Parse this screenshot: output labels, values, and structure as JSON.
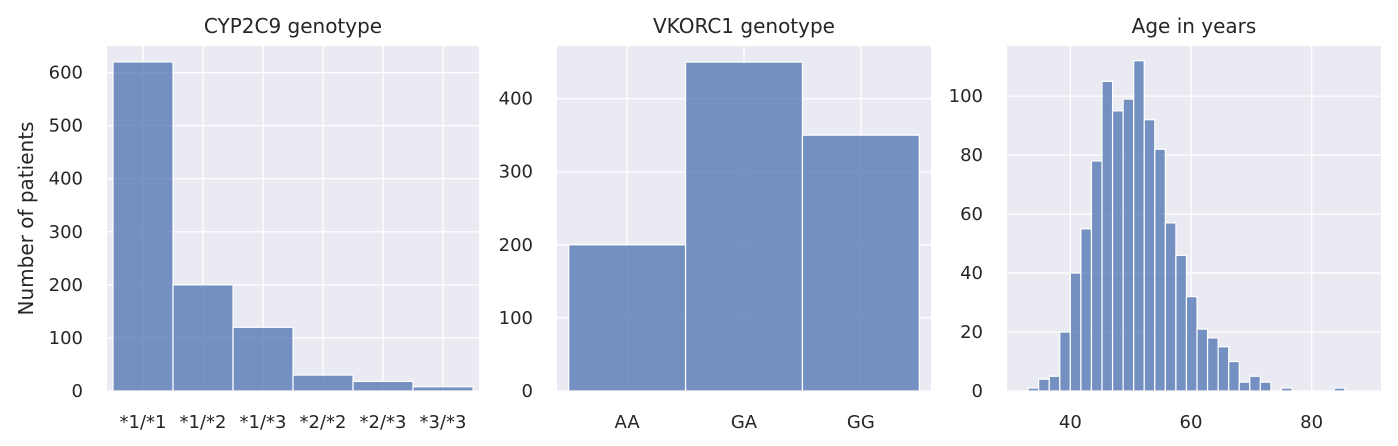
{
  "chart_data": [
    {
      "type": "bar",
      "title": "CYP2C9 genotype",
      "xlabel": "",
      "ylabel": "Number of patients",
      "categories": [
        "*1/*1",
        "*1/*2",
        "*1/*3",
        "*2/*2",
        "*2/*3",
        "*3/*3"
      ],
      "values": [
        620,
        200,
        120,
        30,
        18,
        8
      ],
      "ylim": [
        0,
        650
      ],
      "yticks": [
        0,
        100,
        200,
        300,
        400,
        500,
        600
      ],
      "grid": true,
      "colors": {
        "bar": "#4C72B0",
        "background": "#EAEAF2"
      }
    },
    {
      "type": "bar",
      "title": "VKORC1 genotype",
      "xlabel": "",
      "ylabel": "",
      "categories": [
        "AA",
        "GA",
        "GG"
      ],
      "values": [
        200,
        450,
        350
      ],
      "ylim": [
        0,
        472
      ],
      "yticks": [
        0,
        100,
        200,
        300,
        400
      ],
      "grid": true,
      "colors": {
        "bar": "#4C72B0",
        "background": "#EAEAF2"
      }
    },
    {
      "type": "bar",
      "subtype": "histogram",
      "title": "Age in years",
      "xlabel": "",
      "ylabel": "",
      "bin_start": 33,
      "bin_width": 1.75,
      "values": [
        1,
        4,
        5,
        20,
        40,
        55,
        78,
        105,
        95,
        99,
        112,
        92,
        82,
        57,
        46,
        32,
        21,
        18,
        15,
        10,
        3,
        5,
        3,
        0,
        1,
        0,
        0,
        0,
        0,
        1
      ],
      "xlim": [
        29.5,
        91.5
      ],
      "ylim": [
        0,
        117
      ],
      "xticks": [
        40,
        60,
        80
      ],
      "yticks": [
        0,
        20,
        40,
        60,
        80,
        100
      ],
      "grid": true,
      "colors": {
        "bar": "#4C72B0",
        "background": "#EAEAF2"
      }
    }
  ]
}
